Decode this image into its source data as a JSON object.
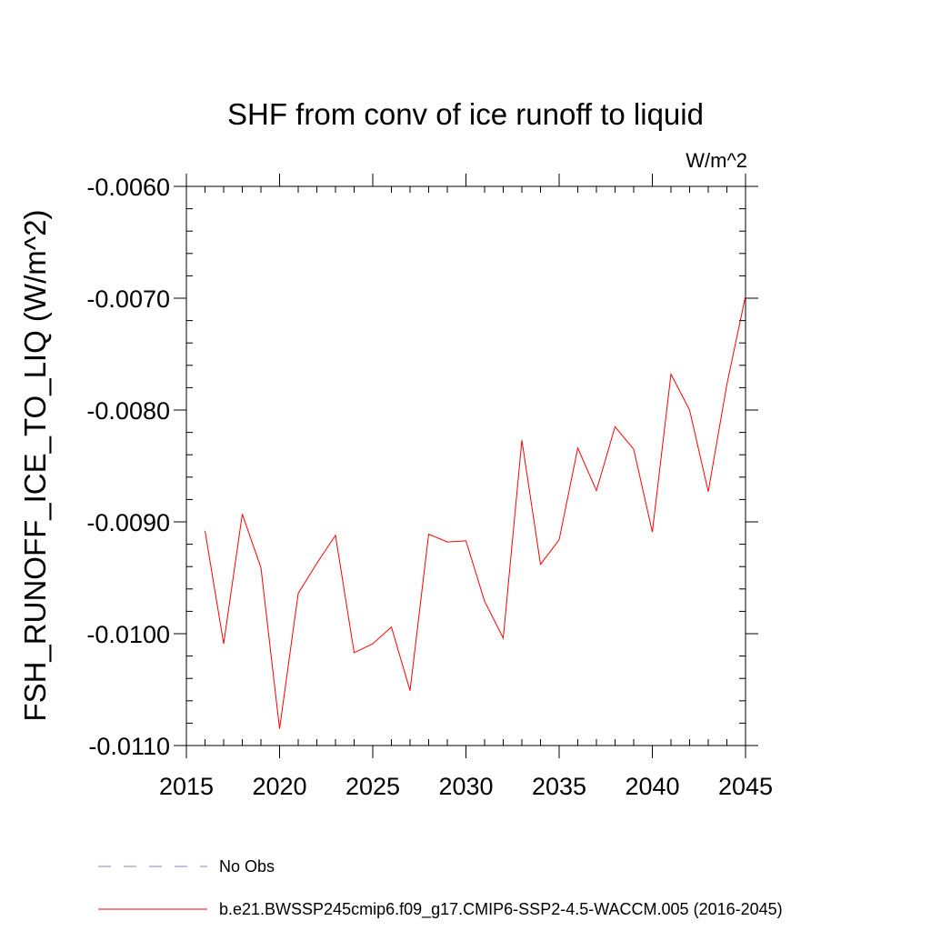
{
  "chart_data": {
    "type": "line",
    "title": "SHF from conv of ice runoff to liquid",
    "units_label": "W/m^2",
    "ylabel": "FSH_RUNOFF_ICE_TO_LIQ  (W/m^2)",
    "xlabel": "",
    "xlim": [
      2015,
      2045
    ],
    "ylim": [
      -0.011,
      -0.006
    ],
    "x_ticks": [
      2015,
      2020,
      2025,
      2030,
      2035,
      2040,
      2045
    ],
    "x_tick_labels": [
      "2015",
      "2020",
      "2025",
      "2030",
      "2035",
      "2040",
      "2045"
    ],
    "y_ticks": [
      -0.006,
      -0.007,
      -0.008,
      -0.009,
      -0.01,
      -0.011
    ],
    "y_tick_labels": [
      "-0.0060",
      "-0.0070",
      "-0.0080",
      "-0.0090",
      "-0.0100",
      "-0.0110"
    ],
    "grid": false,
    "legend_placement": "bottom",
    "series": [
      {
        "name": "b.e21.BWSSP245cmip6.f09_g17.CMIP6-SSP2-4.5-WACCM.005 (2016-2045)",
        "color": "#ff0000",
        "style": "solid",
        "x": [
          2016,
          2017,
          2018,
          2019,
          2020,
          2021,
          2022,
          2023,
          2024,
          2025,
          2026,
          2027,
          2028,
          2029,
          2030,
          2031,
          2032,
          2033,
          2034,
          2035,
          2036,
          2037,
          2038,
          2039,
          2040,
          2041,
          2042,
          2043,
          2044,
          2045
        ],
        "y": [
          -0.00908,
          -0.01009,
          -0.00893,
          -0.00941,
          -0.01085,
          -0.00964,
          -0.00937,
          -0.00912,
          -0.01017,
          -0.01009,
          -0.00994,
          -0.01051,
          -0.00911,
          -0.00918,
          -0.00917,
          -0.00971,
          -0.01004,
          -0.00827,
          -0.00938,
          -0.00916,
          -0.00834,
          -0.00872,
          -0.00815,
          -0.00835,
          -0.00909,
          -0.00768,
          -0.008,
          -0.00873,
          -0.00777,
          -0.00698
        ]
      }
    ],
    "legend": [
      {
        "label": "No Obs",
        "color": "#8a7fc8",
        "style": "dashed"
      },
      {
        "label": "b.e21.BWSSP245cmip6.f09_g17.CMIP6-SSP2-4.5-WACCM.005 (2016-2045)",
        "color": "#ff0000",
        "style": "solid"
      }
    ]
  }
}
